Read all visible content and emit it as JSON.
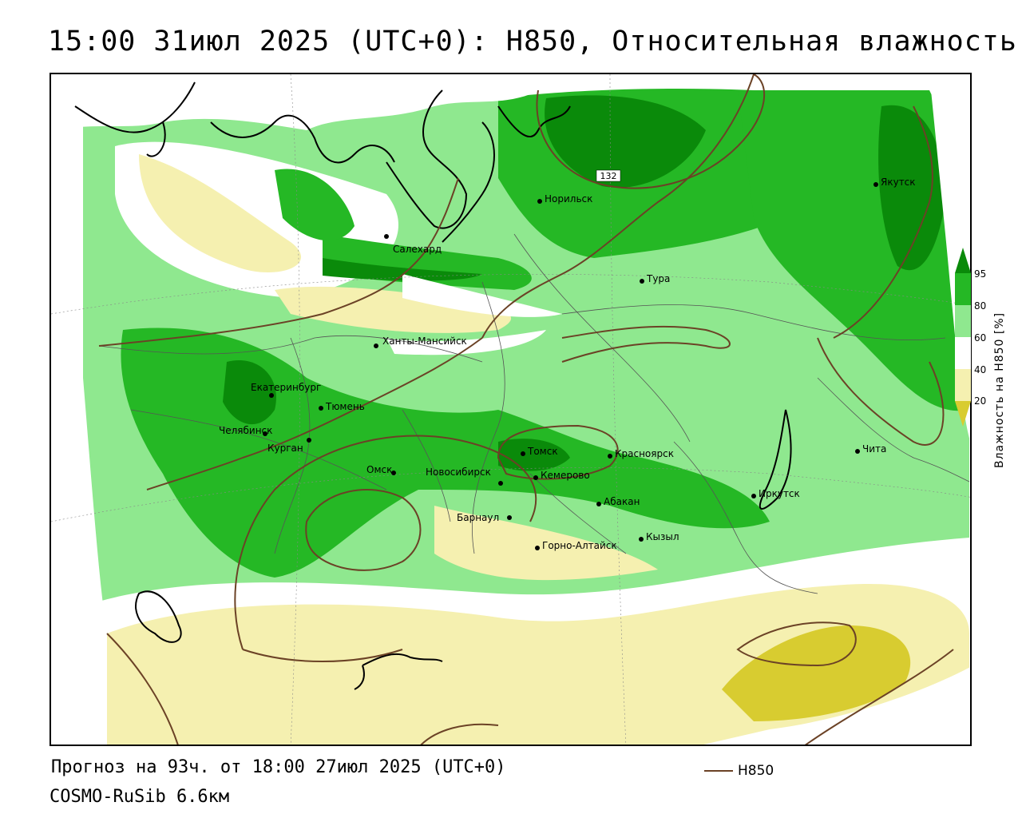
{
  "header": {
    "title": "15:00 31июл 2025 (UTC+0): H850, Относительная влажность"
  },
  "footer": {
    "forecast": "Прогноз на 93ч. от 18:00 27июл 2025 (UTC+0)",
    "model": "COSMO-RuSib 6.6км",
    "contour_legend_label": "H850"
  },
  "colorbar": {
    "title": "Влажность на H850 [%]",
    "ticks": [
      "95",
      "80",
      "60",
      "40",
      "20"
    ],
    "colors": {
      "gt95": "#0a8a0a",
      "80_95": "#25b825",
      "60_80": "#8fe88f",
      "40_60": "#ffffff",
      "20_40": "#f5f0b0",
      "lt20": "#d8cc30"
    }
  },
  "map": {
    "contour_label": "132",
    "contour_color": "#6b4226",
    "cities": [
      {
        "name": "Салехард"
      },
      {
        "name": "Норильск"
      },
      {
        "name": "Якутск"
      },
      {
        "name": "Тура"
      },
      {
        "name": "Ханты-Мансийск"
      },
      {
        "name": "Екатеринбург"
      },
      {
        "name": "Тюмень"
      },
      {
        "name": "Челябинск"
      },
      {
        "name": "Курган"
      },
      {
        "name": "Омск"
      },
      {
        "name": "Новосибирск"
      },
      {
        "name": "Томск"
      },
      {
        "name": "Кемерово"
      },
      {
        "name": "Красноярск"
      },
      {
        "name": "Абакан"
      },
      {
        "name": "Барнаул"
      },
      {
        "name": "Горно-Алтайск"
      },
      {
        "name": "Кызыл"
      },
      {
        "name": "Иркутск"
      },
      {
        "name": "Чита"
      }
    ]
  }
}
